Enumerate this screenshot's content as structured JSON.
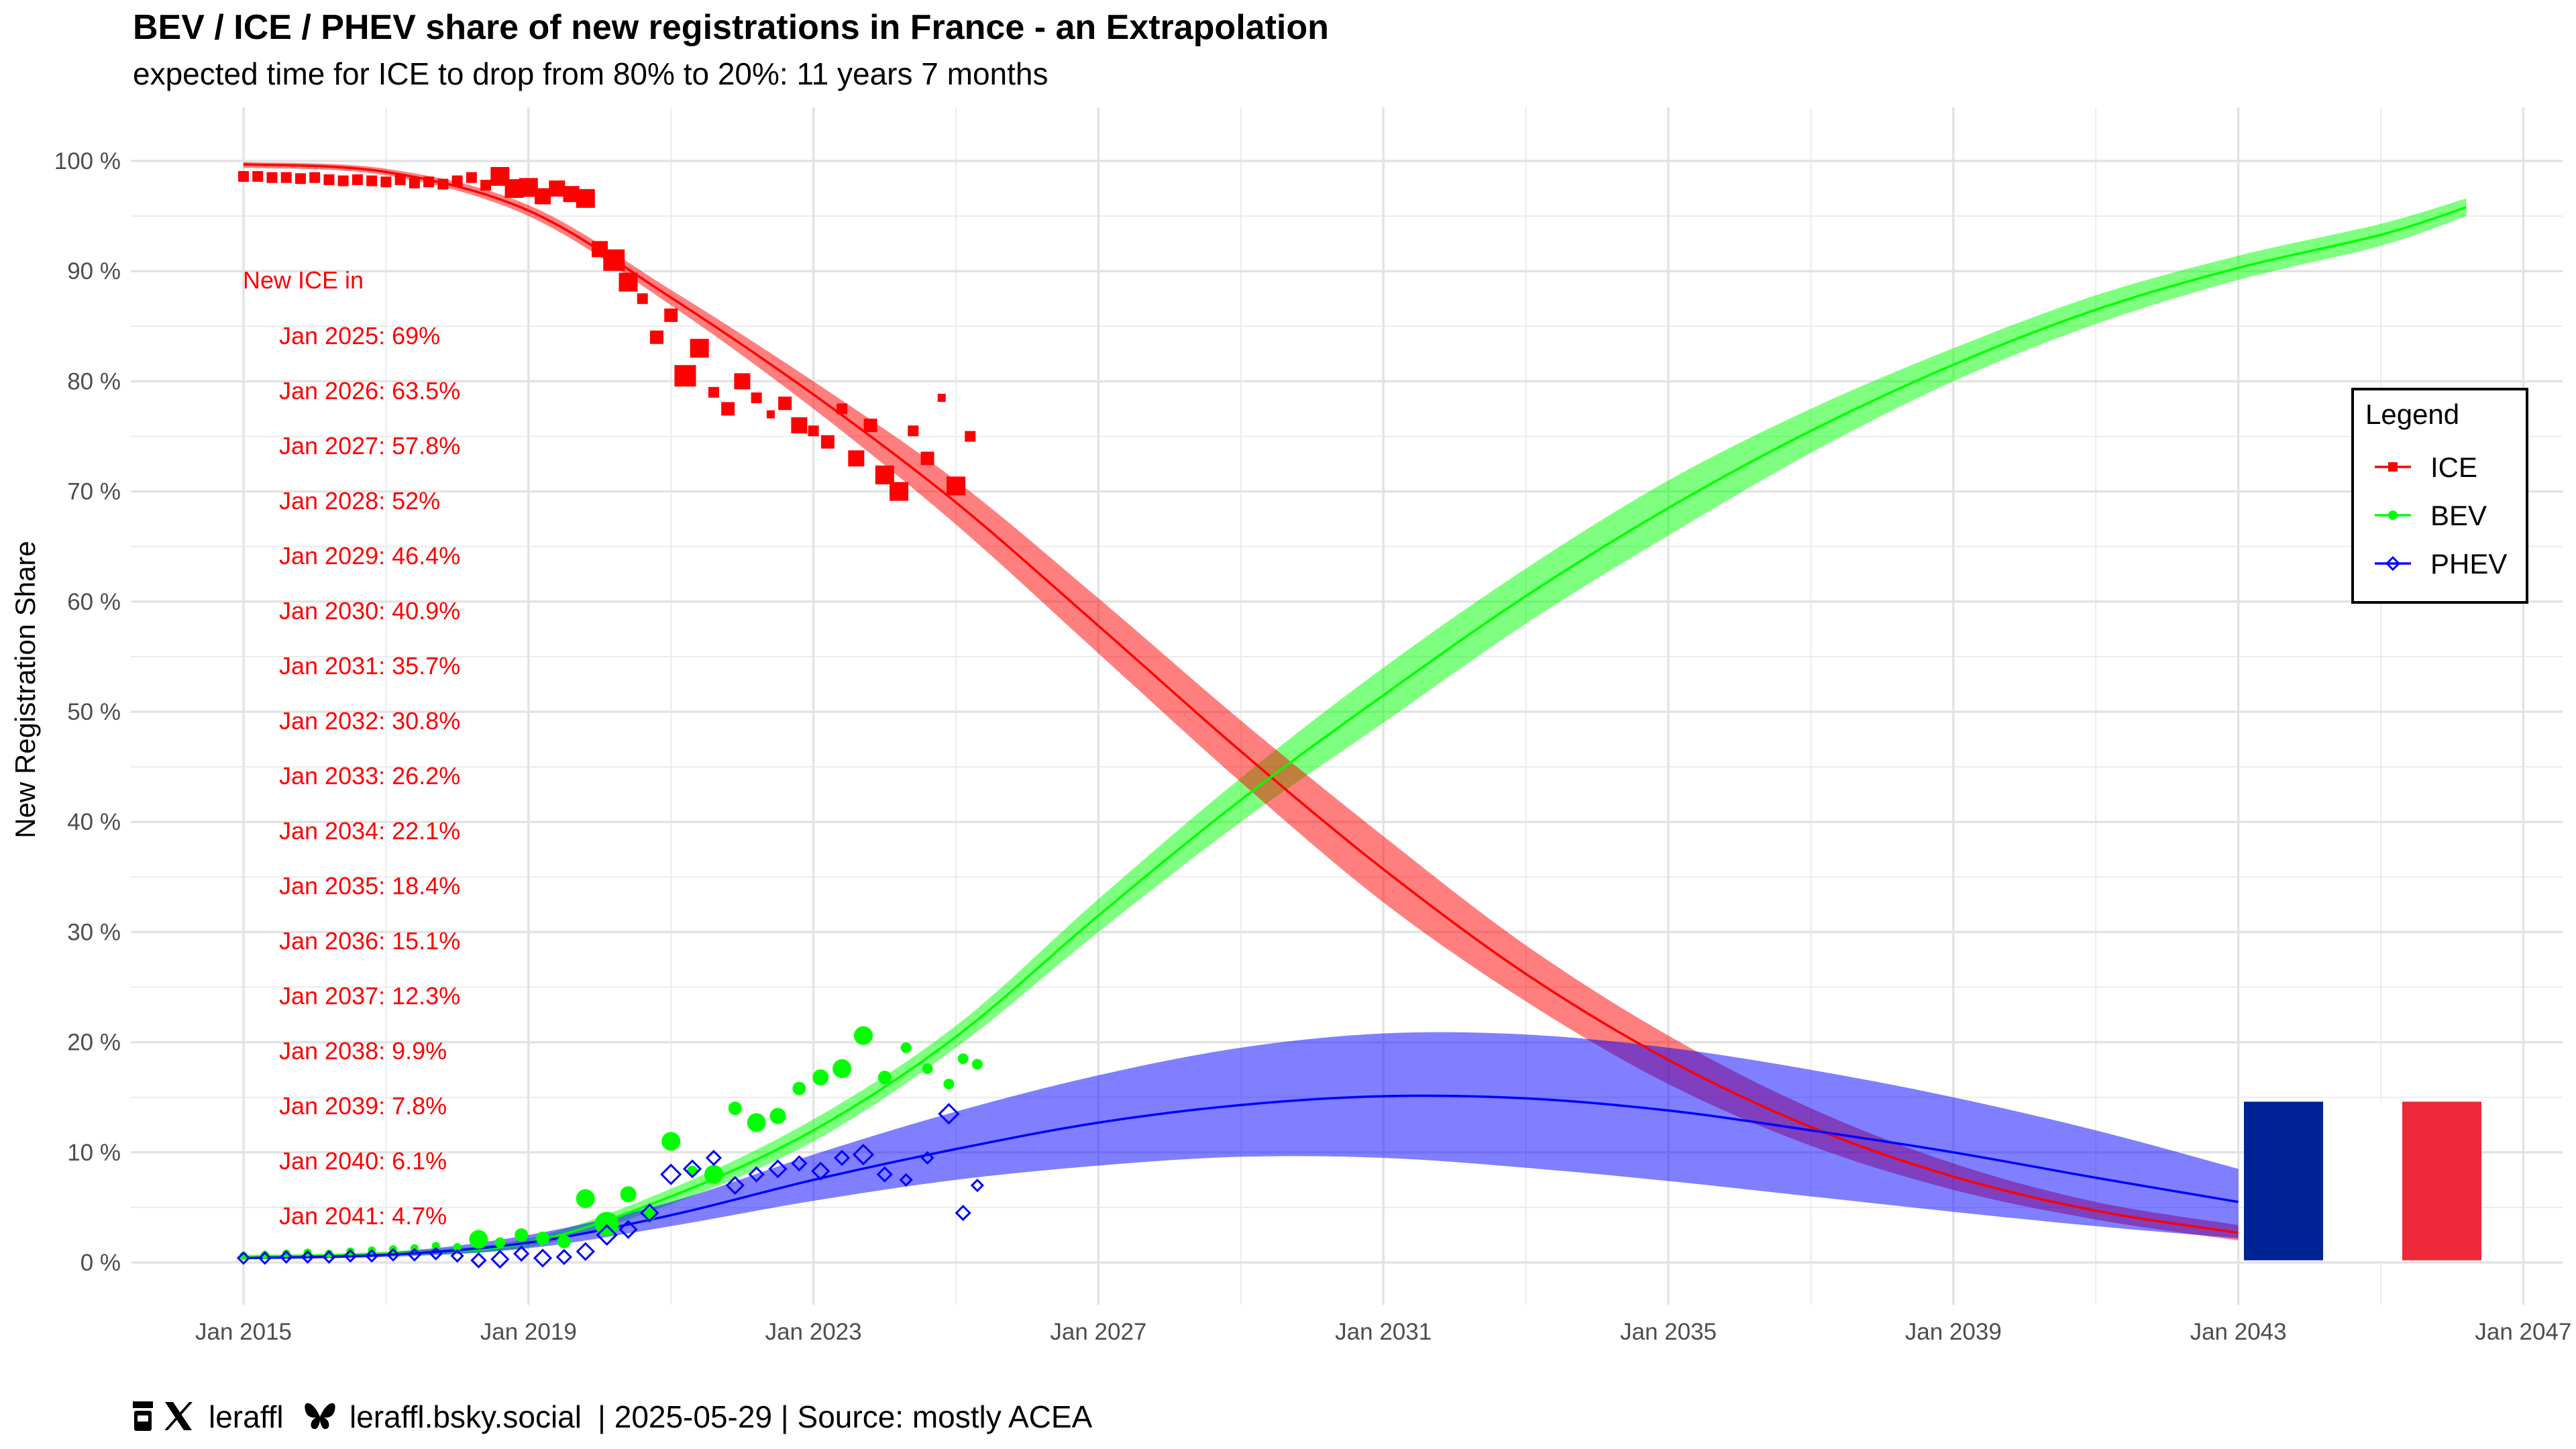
{
  "chart_data": {
    "type": "line",
    "title": "BEV / ICE / PHEV share of new registrations in France - an Extrapolation",
    "subtitle": "expected time for ICE to drop from 80% to 20%: 11 years 7 months",
    "xlabel": "",
    "ylabel": "New Registration Share",
    "xlim": [
      2014.6,
      2047.3
    ],
    "ylim": [
      -4,
      104
    ],
    "x_ticks": [
      {
        "label": "Jan 2015",
        "value": 2015
      },
      {
        "label": "Jan 2019",
        "value": 2019
      },
      {
        "label": "Jan 2023",
        "value": 2023
      },
      {
        "label": "Jan 2027",
        "value": 2027
      },
      {
        "label": "Jan 2031",
        "value": 2031
      },
      {
        "label": "Jan 2035",
        "value": 2035
      },
      {
        "label": "Jan 2039",
        "value": 2039
      },
      {
        "label": "Jan 2043",
        "value": 2043
      },
      {
        "label": "Jan 2047",
        "value": 2047
      }
    ],
    "y_ticks": [
      {
        "label": "0 %",
        "value": 0
      },
      {
        "label": "10 %",
        "value": 10
      },
      {
        "label": "20 %",
        "value": 20
      },
      {
        "label": "30 %",
        "value": 30
      },
      {
        "label": "40 %",
        "value": 40
      },
      {
        "label": "50 %",
        "value": 50
      },
      {
        "label": "60 %",
        "value": 60
      },
      {
        "label": "70 %",
        "value": 70
      },
      {
        "label": "80 %",
        "value": 80
      },
      {
        "label": "90 %",
        "value": 90
      },
      {
        "label": "100 %",
        "value": 100
      }
    ],
    "grid": true,
    "legend": {
      "title": "Legend",
      "position": "right",
      "entries": [
        {
          "name": "ICE",
          "color": "#ff0000",
          "marker": "square"
        },
        {
          "name": "BEV",
          "color": "#00ff00",
          "marker": "circle"
        },
        {
          "name": "PHEV",
          "color": "#0000ff",
          "marker": "diamond"
        }
      ]
    },
    "fits": [
      {
        "name": "ICE",
        "color": "#ff0000",
        "x": [
          2015,
          2017,
          2019,
          2021,
          2023,
          2025,
          2027,
          2029,
          2031,
          2033,
          2035,
          2037,
          2039,
          2041,
          2043
        ],
        "mid": [
          99.7,
          99.0,
          95.5,
          87.6,
          78.8,
          69.0,
          57.8,
          46.4,
          35.7,
          26.2,
          18.4,
          12.3,
          7.8,
          4.7,
          2.7
        ],
        "lower": [
          99.4,
          98.7,
          95.0,
          86.9,
          77.5,
          67.0,
          55.3,
          43.6,
          32.7,
          23.7,
          16.2,
          10.6,
          6.6,
          3.9,
          2.0
        ],
        "upper": [
          99.9,
          99.3,
          96.0,
          88.3,
          80.0,
          71.0,
          60.3,
          49.2,
          38.7,
          28.8,
          20.6,
          14.0,
          9.0,
          5.5,
          3.4
        ]
      },
      {
        "name": "BEV",
        "color": "#00ff00",
        "x": [
          2015,
          2017,
          2019,
          2021,
          2023,
          2025,
          2027,
          2029,
          2031,
          2033,
          2035,
          2037,
          2039,
          2041,
          2043,
          2045,
          2046.2
        ],
        "mid": [
          0.5,
          0.8,
          1.8,
          6.0,
          12.0,
          20.5,
          31.5,
          42.0,
          51.5,
          60.5,
          68.5,
          75.5,
          81.5,
          86.5,
          90.3,
          93.3,
          95.8
        ],
        "lower": [
          0.3,
          0.6,
          1.4,
          5.3,
          11.0,
          19.5,
          30.0,
          40.0,
          49.0,
          58.0,
          66.0,
          73.5,
          80.0,
          85.2,
          89.2,
          92.3,
          95.0
        ],
        "upper": [
          0.7,
          1.0,
          2.2,
          6.7,
          13.0,
          21.5,
          33.0,
          44.0,
          54.0,
          63.0,
          71.0,
          77.5,
          83.0,
          87.8,
          91.4,
          94.3,
          96.6
        ]
      },
      {
        "name": "PHEV",
        "color": "#0000ff",
        "x": [
          2015,
          2017,
          2019,
          2021,
          2023,
          2025,
          2027,
          2029,
          2031,
          2033,
          2035,
          2037,
          2039,
          2041,
          2043
        ],
        "mid": [
          0.4,
          0.7,
          1.8,
          4.3,
          7.5,
          10.3,
          12.7,
          14.3,
          15.1,
          14.9,
          13.8,
          12.0,
          10.0,
          7.7,
          5.5
        ],
        "lower": [
          0.3,
          0.5,
          1.3,
          3.3,
          5.6,
          7.5,
          8.8,
          9.6,
          9.5,
          8.6,
          7.4,
          6.0,
          4.6,
          3.3,
          2.2
        ],
        "upper": [
          0.5,
          0.9,
          2.5,
          5.5,
          9.8,
          13.7,
          17.0,
          19.5,
          20.8,
          20.7,
          19.5,
          17.5,
          15.0,
          12.0,
          8.5
        ]
      }
    ],
    "observed": [
      {
        "name": "ICE",
        "color": "#ff0000",
        "x": [
          2015.0,
          2015.2,
          2015.4,
          2015.6,
          2015.8,
          2016.0,
          2016.2,
          2016.4,
          2016.6,
          2016.8,
          2017.0,
          2017.2,
          2017.4,
          2017.6,
          2017.8,
          2018.0,
          2018.2,
          2018.4,
          2018.6,
          2018.8,
          2019.0,
          2019.2,
          2019.4,
          2019.6,
          2019.8,
          2020.0,
          2020.2,
          2020.4,
          2020.6,
          2020.8,
          2021.0,
          2021.2,
          2021.4,
          2021.6,
          2021.8,
          2022.0,
          2022.2,
          2022.4,
          2022.6,
          2022.8,
          2023.0,
          2023.2,
          2023.4,
          2023.6,
          2023.8,
          2024.0,
          2024.2,
          2024.4,
          2024.6,
          2024.8,
          2025.0,
          2025.2
        ],
        "y": [
          98.6,
          98.6,
          98.5,
          98.5,
          98.4,
          98.5,
          98.3,
          98.2,
          98.3,
          98.2,
          98.1,
          98.3,
          98.0,
          98.1,
          97.9,
          98.2,
          98.5,
          97.8,
          98.6,
          97.5,
          97.6,
          96.8,
          97.5,
          97.0,
          96.6,
          92,
          91,
          89,
          87.5,
          84,
          86,
          80.5,
          83,
          79,
          77.5,
          80,
          78.5,
          77,
          78,
          76,
          75.5,
          74.5,
          77.5,
          73,
          76,
          71.5,
          70,
          75.5,
          73,
          78.5,
          70.5,
          75
        ],
        "size": [
          8,
          8,
          8,
          8,
          8,
          8,
          8,
          8,
          8,
          8,
          8,
          8,
          8,
          8,
          8,
          8,
          8,
          8,
          14,
          14,
          14,
          12,
          12,
          12,
          14,
          12,
          16,
          14,
          8,
          10,
          10,
          16,
          14,
          8,
          10,
          12,
          8,
          6,
          10,
          12,
          8,
          10,
          8,
          12,
          10,
          14,
          14,
          8,
          10,
          6,
          14,
          8
        ]
      },
      {
        "name": "BEV",
        "color": "#00ff00",
        "x": [
          2015.0,
          2015.3,
          2015.6,
          2015.9,
          2016.2,
          2016.5,
          2016.8,
          2017.1,
          2017.4,
          2017.7,
          2018.0,
          2018.3,
          2018.6,
          2018.9,
          2019.2,
          2019.5,
          2019.8,
          2020.1,
          2020.4,
          2020.7,
          2021.0,
          2021.3,
          2021.6,
          2021.9,
          2022.2,
          2022.5,
          2022.8,
          2023.1,
          2023.4,
          2023.7,
          2024.0,
          2024.3,
          2024.6,
          2024.9,
          2025.1,
          2025.3
        ],
        "y": [
          0.6,
          0.7,
          0.8,
          0.9,
          0.8,
          1.0,
          1.1,
          1.2,
          1.3,
          1.5,
          1.4,
          2.1,
          1.8,
          2.5,
          2.2,
          1.9,
          5.8,
          3.5,
          6.2,
          4.4,
          11.0,
          8.3,
          8.0,
          14.0,
          12.7,
          13.3,
          15.8,
          16.8,
          17.6,
          20.6,
          16.8,
          19.5,
          17.6,
          16.2,
          18.5,
          18.0
        ],
        "size": [
          6,
          6,
          6,
          6,
          6,
          6,
          6,
          6,
          6,
          6,
          6,
          14,
          8,
          10,
          10,
          10,
          14,
          18,
          12,
          10,
          14,
          8,
          14,
          10,
          14,
          12,
          10,
          12,
          14,
          14,
          10,
          8,
          8,
          8,
          8,
          8
        ]
      },
      {
        "name": "PHEV",
        "color": "#0000ff",
        "x": [
          2015.0,
          2015.3,
          2015.6,
          2015.9,
          2016.2,
          2016.5,
          2016.8,
          2017.1,
          2017.4,
          2017.7,
          2018.0,
          2018.3,
          2018.6,
          2018.9,
          2019.2,
          2019.5,
          2019.8,
          2020.1,
          2020.4,
          2020.7,
          2021.0,
          2021.3,
          2021.6,
          2021.9,
          2022.2,
          2022.5,
          2022.8,
          2023.1,
          2023.4,
          2023.7,
          2024.0,
          2024.3,
          2024.6,
          2024.9,
          2025.1,
          2025.3
        ],
        "y": [
          0.4,
          0.4,
          0.5,
          0.5,
          0.5,
          0.6,
          0.6,
          0.7,
          0.7,
          0.8,
          0.6,
          0.2,
          0.3,
          0.8,
          0.4,
          0.5,
          1.0,
          2.5,
          3.0,
          4.5,
          8.0,
          8.5,
          9.5,
          7.0,
          8.0,
          8.5,
          9.0,
          8.3,
          9.5,
          9.8,
          8.0,
          7.5,
          9.5,
          13.5,
          4.5,
          7.0
        ],
        "size": [
          8,
          8,
          8,
          8,
          8,
          8,
          8,
          8,
          8,
          8,
          8,
          10,
          12,
          10,
          12,
          10,
          12,
          14,
          12,
          12,
          14,
          12,
          10,
          12,
          10,
          12,
          10,
          12,
          10,
          14,
          10,
          8,
          8,
          14,
          10,
          8
        ]
      }
    ]
  },
  "annotation": {
    "header": "New ICE in",
    "lines": [
      "Jan 2025: 69%",
      "Jan 2026: 63.5%",
      "Jan 2027: 57.8%",
      "Jan 2028: 52%",
      "Jan 2029: 46.4%",
      "Jan 2030: 40.9%",
      "Jan 2031: 35.7%",
      "Jan 2032: 30.8%",
      "Jan 2033: 26.2%",
      "Jan 2034: 22.1%",
      "Jan 2035: 18.4%",
      "Jan 2036: 15.1%",
      "Jan 2037: 12.3%",
      "Jan 2038: 9.9%",
      "Jan 2039: 7.8%",
      "Jan 2040: 6.1%",
      "Jan 2041: 4.7%"
    ],
    "color": "#ff0000"
  },
  "flag": {
    "colors": [
      "#002395",
      "#ffffff",
      "#ed2939"
    ]
  },
  "caption": {
    "icons": [
      "coffee-icon",
      "x-logo-icon",
      "butterfly-icon"
    ],
    "handle": "leraffl",
    "bsky": "leraffl.bsky.social",
    "rest": "| 2025-05-29 | Source: mostly ACEA"
  }
}
